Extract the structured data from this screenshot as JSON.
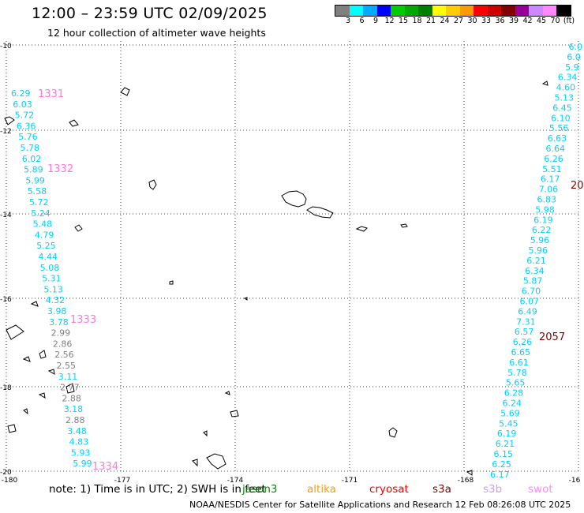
{
  "header": {
    "title": "12:00 – 23:59 UTC 02/09/2025",
    "subtitle": "12 hour collection of altimeter wave heights"
  },
  "colorbar": {
    "colors": [
      "#808080",
      "#00ffff",
      "#00aaff",
      "#0000ff",
      "#00cc00",
      "#00aa00",
      "#008000",
      "#ffff00",
      "#ffcc00",
      "#ff9900",
      "#ff0000",
      "#cc0000",
      "#800000",
      "#990099",
      "#cc88ff",
      "#ff88ff",
      "#000000"
    ],
    "labels": [
      "3",
      "6",
      "9",
      "12",
      "15",
      "18",
      "21",
      "24",
      "27",
      "30",
      "33",
      "36",
      "39",
      "42",
      "45",
      "70",
      "(ft)"
    ]
  },
  "axes": {
    "x_ticks": [
      "-180",
      "-177",
      "-174",
      "-171",
      "-168",
      "-16"
    ],
    "y_ticks": [
      "-10",
      "-12",
      "-14",
      "-16",
      "-18",
      "-20"
    ]
  },
  "passes": {
    "west": {
      "values": [
        "6.29",
        "6.03",
        "5.72",
        "6.36",
        "5.76",
        "5.78",
        "6.02",
        "5.89",
        "5.99",
        "5.58",
        "5.72",
        "5.24",
        "5.48",
        "4.79",
        "5.25",
        "4.44",
        "5.08",
        "5.31",
        "5.13",
        "4.32",
        "3.98",
        "3.78",
        "2.99",
        "2.86",
        "2.56",
        "2.55",
        "3.11",
        "2.77",
        "2.88",
        "3.18",
        "2.88",
        "3.48",
        "4.83",
        "5.93",
        "5.99"
      ],
      "colors": [
        "#00d0ff",
        "#00d0ff",
        "#00d0ff",
        "#00d0ff",
        "#00d0ff",
        "#00d0ff",
        "#00d0ff",
        "#00d0ff",
        "#00d0ff",
        "#00d0ff",
        "#00d0ff",
        "#00d0ff",
        "#00d0ff",
        "#00d0ff",
        "#00d0ff",
        "#00d0ff",
        "#00d0ff",
        "#00d0ff",
        "#00d0ff",
        "#00d0ff",
        "#00d0ff",
        "#00d0ff",
        "#808080",
        "#808080",
        "#808080",
        "#808080",
        "#00d0ff",
        "#808080",
        "#808080",
        "#00d0ff",
        "#808080",
        "#00d0ff",
        "#00d0ff",
        "#00d0ff",
        "#00d0ff"
      ],
      "labels": [
        "1331",
        "1332",
        "1333",
        "1334"
      ]
    },
    "east": {
      "values": [
        "6.0",
        "6.0",
        "5.9",
        "6.34",
        "4.60",
        "5.13",
        "6.45",
        "6.10",
        "5.56",
        "6.63",
        "6.64",
        "6.26",
        "5.51",
        "6.17",
        "7.06",
        "6.83",
        "5.98",
        "6.19",
        "6.22",
        "5.96",
        "5.96",
        "6.21",
        "6.34",
        "5.87",
        "6.70",
        "6.07",
        "6.49",
        "7.31",
        "6.57",
        "6.26",
        "6.65",
        "6.61",
        "5.78",
        "5.65",
        "6.28",
        "6.24",
        "5.69",
        "5.45",
        "6.19",
        "6.21",
        "6.15",
        "6.25",
        "6.17"
      ],
      "labels": [
        "20",
        "2057"
      ]
    }
  },
  "footer": {
    "note": "note:  1) Time is in UTC;  2) SWH is in feet",
    "satellites": [
      {
        "name": "jason3",
        "color": "#008800"
      },
      {
        "name": "altika",
        "color": "#ff9900"
      },
      {
        "name": "cryosat",
        "color": "#ee0000"
      },
      {
        "name": "s3a",
        "color": "#880000"
      },
      {
        "name": "s3b",
        "color": "#c8a0f0"
      },
      {
        "name": "swot",
        "color": "#ff88ff"
      }
    ],
    "credit": "NOAA/NESDIS Center for Satellite Applications and Research     12 Feb 08:26:08 UTC 2025"
  }
}
